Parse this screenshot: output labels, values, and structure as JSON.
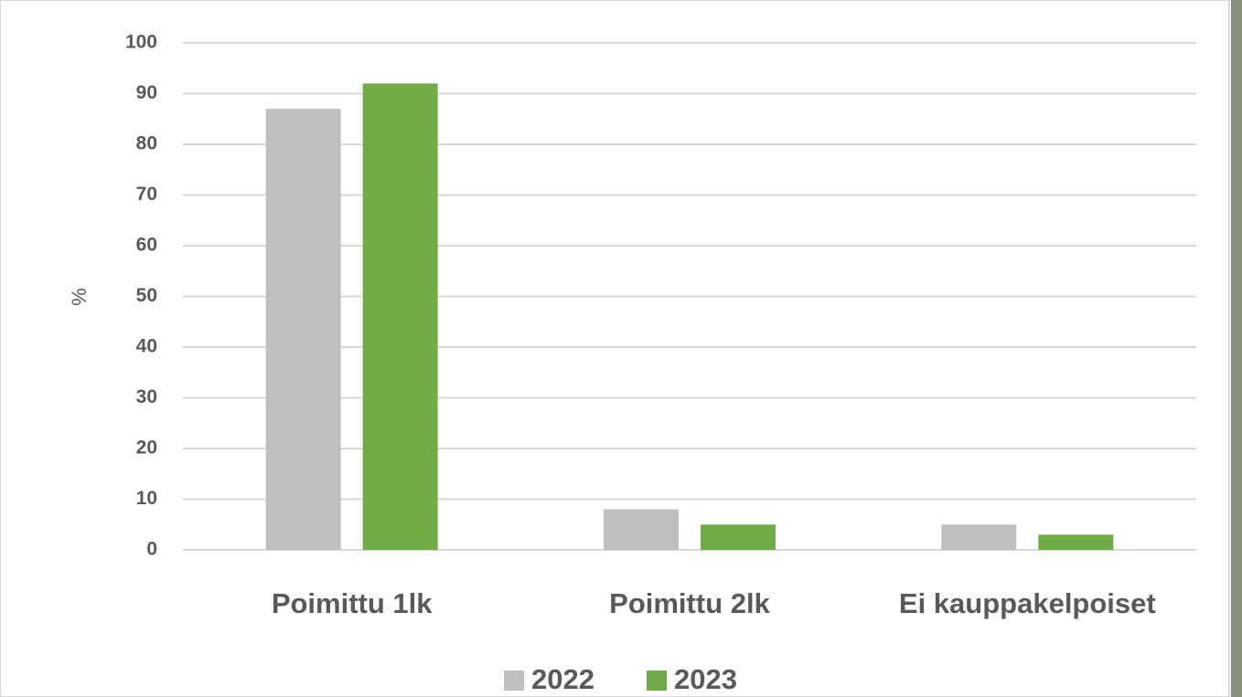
{
  "chart_data": {
    "type": "bar",
    "y_label": "%",
    "categories": [
      "Poimittu 1lk",
      "Poimittu 2lk",
      "Ei kauppakelpoiset"
    ],
    "series": [
      {
        "name": "2022",
        "color": "#bfbfbf",
        "values": [
          87,
          8,
          5
        ]
      },
      {
        "name": "2023",
        "color": "#70ad47",
        "values": [
          92,
          5,
          3
        ]
      }
    ],
    "ylim": [
      0,
      100
    ],
    "yticks": [
      0,
      10,
      20,
      30,
      40,
      50,
      60,
      70,
      80,
      90,
      100
    ],
    "grid": true,
    "legend": "bottom"
  }
}
